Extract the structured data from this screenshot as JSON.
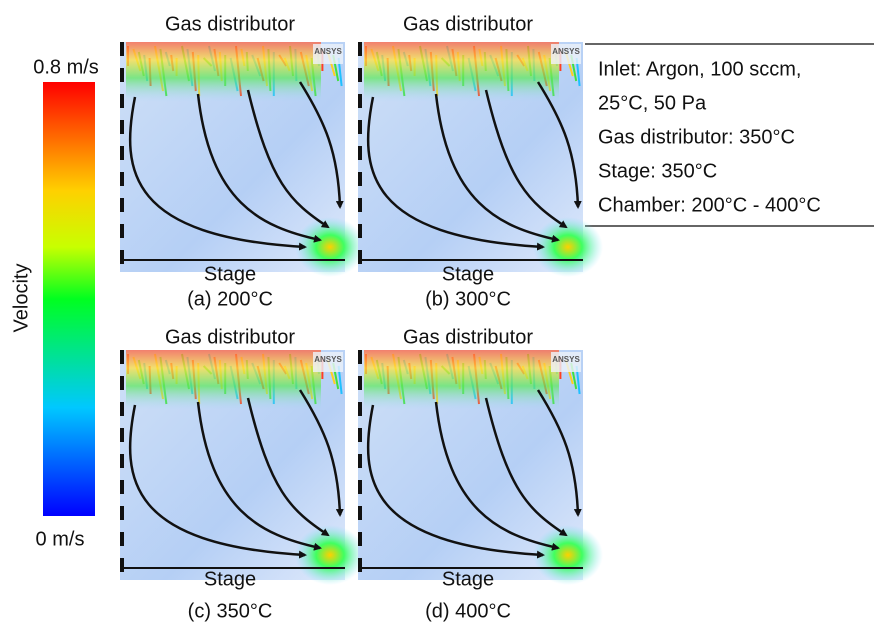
{
  "colorbar": {
    "title": "Velocity",
    "max_label": "0.8 m/s",
    "min_label": "0 m/s"
  },
  "panels": [
    {
      "top_label": "Gas distributor",
      "bottom_label": "Stage",
      "caption": "(a) 200°C",
      "logo": "ANSYS"
    },
    {
      "top_label": "Gas distributor",
      "bottom_label": "Stage",
      "caption": "(b) 300°C",
      "logo": "ANSYS"
    },
    {
      "top_label": "Gas distributor",
      "bottom_label": "Stage",
      "caption": "(c) 350°C",
      "logo": "ANSYS"
    },
    {
      "top_label": "Gas distributor",
      "bottom_label": "Stage",
      "caption": "(d) 400°C",
      "logo": "ANSYS"
    }
  ],
  "conditions": [
    "Inlet: Argon, 100 sccm,",
    "25°C, 50 Pa",
    "Gas distributor: 350°C",
    "Stage: 350°C",
    "Chamber: 200°C - 400°C"
  ]
}
